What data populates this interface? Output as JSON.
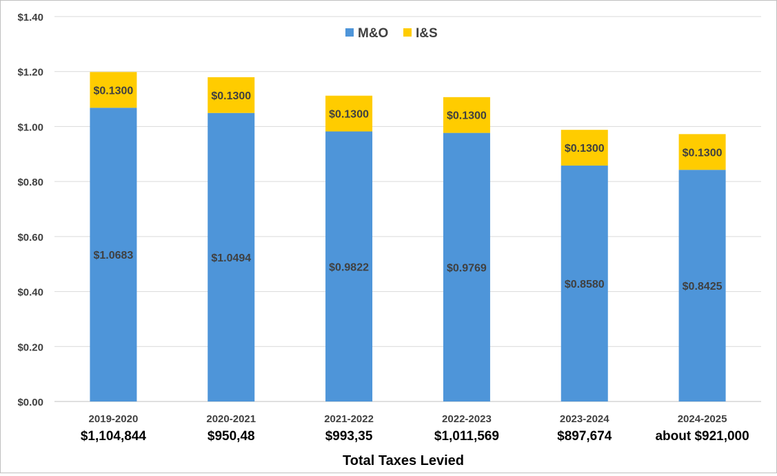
{
  "chart_data": {
    "type": "bar",
    "stacked": true,
    "title": "",
    "xlabel": "Total Taxes Levied",
    "ylabel": "",
    "ylim": [
      0,
      1.4
    ],
    "ytick_step": 0.2,
    "ytick_labels": [
      "$0.00",
      "$0.20",
      "$0.40",
      "$0.60",
      "$0.80",
      "$1.00",
      "$1.20",
      "$1.40"
    ],
    "grid": true,
    "legend_position": "top-center",
    "categories": [
      "2019-2020",
      "2020-2021",
      "2021-2022",
      "2022-2023",
      "2023-2024",
      "2024-2025"
    ],
    "category_totals": [
      "$1,104,844",
      "$950,48",
      "$993,35",
      "$1,011,569",
      "$897,674",
      "about $921,000"
    ],
    "series": [
      {
        "name": "M&O",
        "color": "#4e95d9",
        "values": [
          1.0683,
          1.0494,
          0.9822,
          0.9769,
          0.858,
          0.8425
        ],
        "labels": [
          "$1.0683",
          "$1.0494",
          "$0.9822",
          "$0.9769",
          "$0.8580",
          "$0.8425"
        ]
      },
      {
        "name": "I&S",
        "color": "#ffcc00",
        "values": [
          0.13,
          0.13,
          0.13,
          0.13,
          0.13,
          0.13
        ],
        "labels": [
          "$0.1300",
          "$0.1300",
          "$0.1300",
          "$0.1300",
          "$0.1300",
          "$0.1300"
        ]
      }
    ]
  }
}
